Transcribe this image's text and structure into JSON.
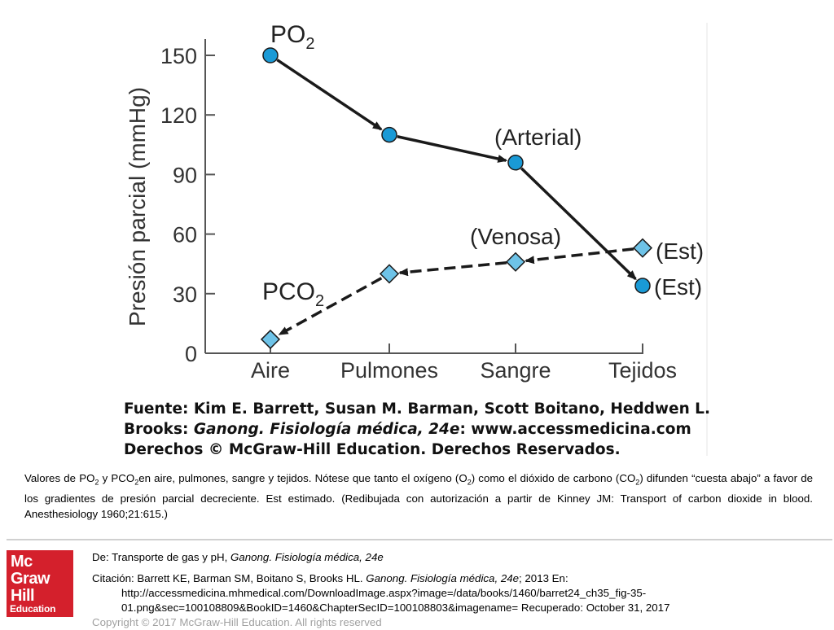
{
  "chart_data": {
    "type": "line",
    "categories": [
      "Aire",
      "Pulmones",
      "Sangre",
      "Tejidos"
    ],
    "ylabel": "Presión parcial (mmHg)",
    "yticks": [
      0,
      30,
      60,
      90,
      120,
      150
    ],
    "ylim": [
      0,
      160
    ],
    "series": [
      {
        "name": "PO2",
        "name_main": "PO",
        "name_sub": "2",
        "marker": "circle",
        "line": "solid",
        "values": [
          150,
          110,
          96,
          34
        ]
      },
      {
        "name": "PCO2",
        "name_main": "PCO",
        "name_sub": "2",
        "marker": "diamond",
        "line": "dashed",
        "values": [
          7,
          40,
          46,
          53
        ]
      }
    ],
    "annotations": {
      "arterial": "(Arterial)",
      "venosa": "(Venosa)",
      "est_upper": "(Est)",
      "est_lower": "(Est)"
    },
    "colors": {
      "marker_fill": "#1a9ad6",
      "marker_diamond": "#6ec3e8",
      "line": "#1a1a1a",
      "axis": "#555555"
    }
  },
  "source": {
    "line1": "Fuente: Kim E. Barrett, Susan M. Barman, Scott Boitano, Heddwen L.",
    "line2_pre": "Brooks: ",
    "line2_italic": "Ganong. Fisiología médica, 24e",
    "line2_post": ": www.accessmedicina.com",
    "line3": "Derechos © McGraw-Hill Education. Derechos Reservados."
  },
  "caption": {
    "p1": "Valores de PO",
    "s1": "2",
    "p2": " y PCO",
    "s2": "2",
    "p3": "en aire, pulmones, sangre y tejidos. Nótese que tanto el oxígeno (O",
    "s3": "2",
    "p4": ") como el dióxido de carbono (CO",
    "s4": "2",
    "p5": ") difunden “cuesta abajo” a favor de los gradientes de presión parcial decreciente. Est estimado. (Redibujada con autorización a partir de Kinney JM: Transport of carbon dioxide in blood. Anesthesiology 1960;21:615.)"
  },
  "logo": {
    "l1": "Mc",
    "l2": "Graw",
    "l3": "Hill",
    "l4": "Education"
  },
  "footer": {
    "de_pre": "De: Transporte de gas y pH, ",
    "de_italic": "Ganong. Fisiología médica, 24e",
    "cit_pre": "Citación: Barrett KE, Barman SM, Boitano S, Brooks HL. ",
    "cit_italic": "Ganong. Fisiología médica, 24e",
    "cit_post": "; 2013 En:",
    "url1": "http://accessmedicina.mhmedical.com/DownloadImage.aspx?image=/data/books/1460/barret24_ch35_fig-35-",
    "url2": "01.png&sec=100108809&BookID=1460&ChapterSecID=100108803&imagename= Recuperado: October 31, 2017",
    "copyright": "Copyright © 2017 McGraw-Hill Education. All rights reserved"
  }
}
